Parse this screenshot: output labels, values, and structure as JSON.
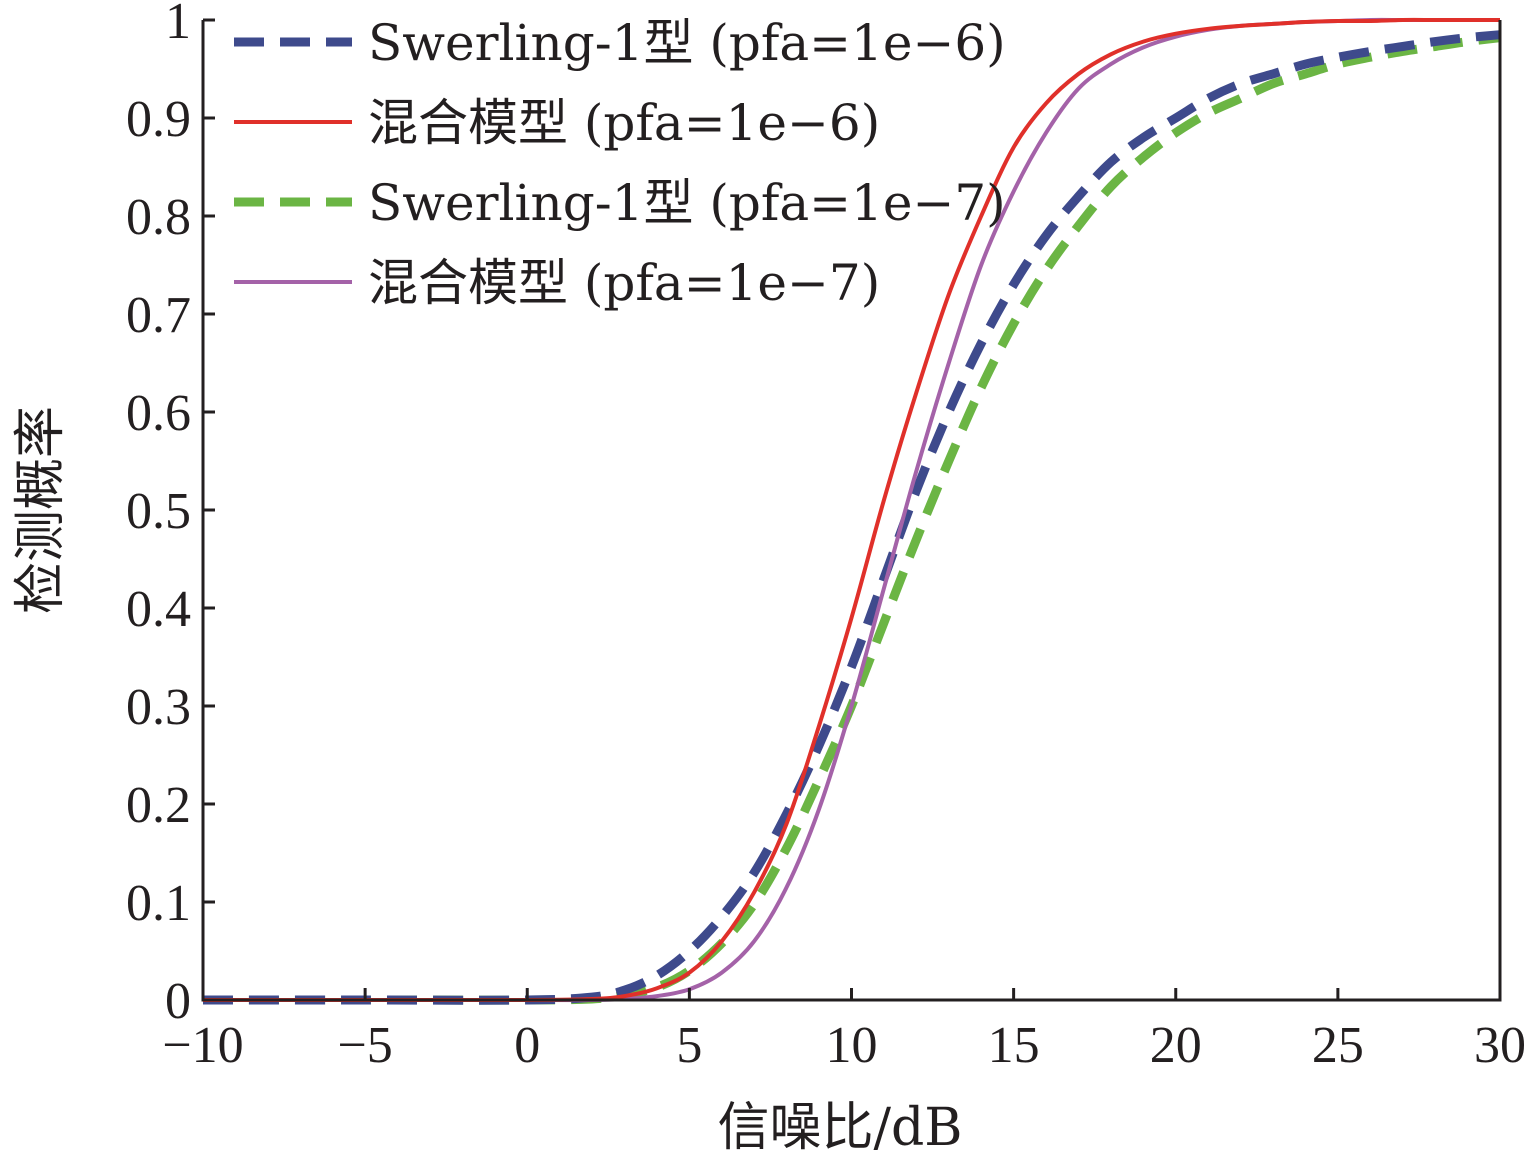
{
  "chart_data": {
    "type": "line",
    "xlabel": "信噪比/dB",
    "ylabel": "检测概率",
    "xlim": [
      -10,
      30
    ],
    "ylim": [
      0,
      1
    ],
    "xticks": [
      -10,
      -5,
      0,
      5,
      10,
      15,
      20,
      25,
      30
    ],
    "xtick_labels": [
      "−10",
      "−5",
      "0",
      "5",
      "10",
      "15",
      "20",
      "25",
      "30"
    ],
    "yticks": [
      0,
      0.1,
      0.2,
      0.3,
      0.4,
      0.5,
      0.6,
      0.7,
      0.8,
      0.9,
      1
    ],
    "ytick_labels": [
      "0",
      "0.1",
      "0.2",
      "0.3",
      "0.4",
      "0.5",
      "0.6",
      "0.7",
      "0.8",
      "0.9",
      "1"
    ],
    "grid": false,
    "legend_position": "top-left",
    "x": [
      -10,
      -5,
      0,
      2,
      3,
      4,
      5,
      6,
      7,
      8,
      9,
      10,
      11,
      12,
      13,
      14,
      15,
      16,
      17,
      18,
      19,
      20,
      21,
      22,
      23,
      24,
      25,
      26,
      27,
      28,
      29,
      30
    ],
    "series": [
      {
        "name": "Swerling-1型 (pfa=1e−6)",
        "color": "#3e4a8c",
        "dash": "dashed",
        "values": [
          0,
          0,
          0,
          0.003,
          0.01,
          0.025,
          0.05,
          0.085,
          0.13,
          0.19,
          0.26,
          0.34,
          0.43,
          0.52,
          0.6,
          0.67,
          0.73,
          0.78,
          0.82,
          0.855,
          0.88,
          0.9,
          0.92,
          0.935,
          0.945,
          0.955,
          0.962,
          0.968,
          0.973,
          0.978,
          0.982,
          0.985
        ]
      },
      {
        "name": "混合模型 (pfa=1e−6)",
        "color": "#e0302a",
        "dash": "solid",
        "values": [
          0,
          0,
          0,
          0.001,
          0.004,
          0.012,
          0.028,
          0.06,
          0.11,
          0.18,
          0.28,
          0.39,
          0.51,
          0.62,
          0.72,
          0.8,
          0.87,
          0.915,
          0.945,
          0.965,
          0.978,
          0.986,
          0.991,
          0.994,
          0.996,
          0.998,
          0.999,
          0.999,
          1,
          1,
          1,
          1
        ]
      },
      {
        "name": "Swerling-1型 (pfa=1e−7)",
        "color": "#6bb544",
        "dash": "dashed",
        "values": [
          0,
          0,
          0,
          0.001,
          0.005,
          0.013,
          0.03,
          0.058,
          0.098,
          0.155,
          0.225,
          0.3,
          0.385,
          0.47,
          0.55,
          0.625,
          0.69,
          0.745,
          0.79,
          0.83,
          0.86,
          0.885,
          0.905,
          0.92,
          0.935,
          0.945,
          0.955,
          0.962,
          0.968,
          0.973,
          0.978,
          0.982
        ]
      },
      {
        "name": "混合模型 (pfa=1e−7)",
        "color": "#a462a8",
        "dash": "solid",
        "values": [
          0,
          0,
          0,
          0,
          0.001,
          0.004,
          0.011,
          0.028,
          0.06,
          0.115,
          0.195,
          0.3,
          0.42,
          0.54,
          0.65,
          0.75,
          0.825,
          0.885,
          0.93,
          0.955,
          0.972,
          0.983,
          0.99,
          0.994,
          0.996,
          0.998,
          0.999,
          1,
          1,
          1,
          1,
          1
        ]
      }
    ]
  }
}
